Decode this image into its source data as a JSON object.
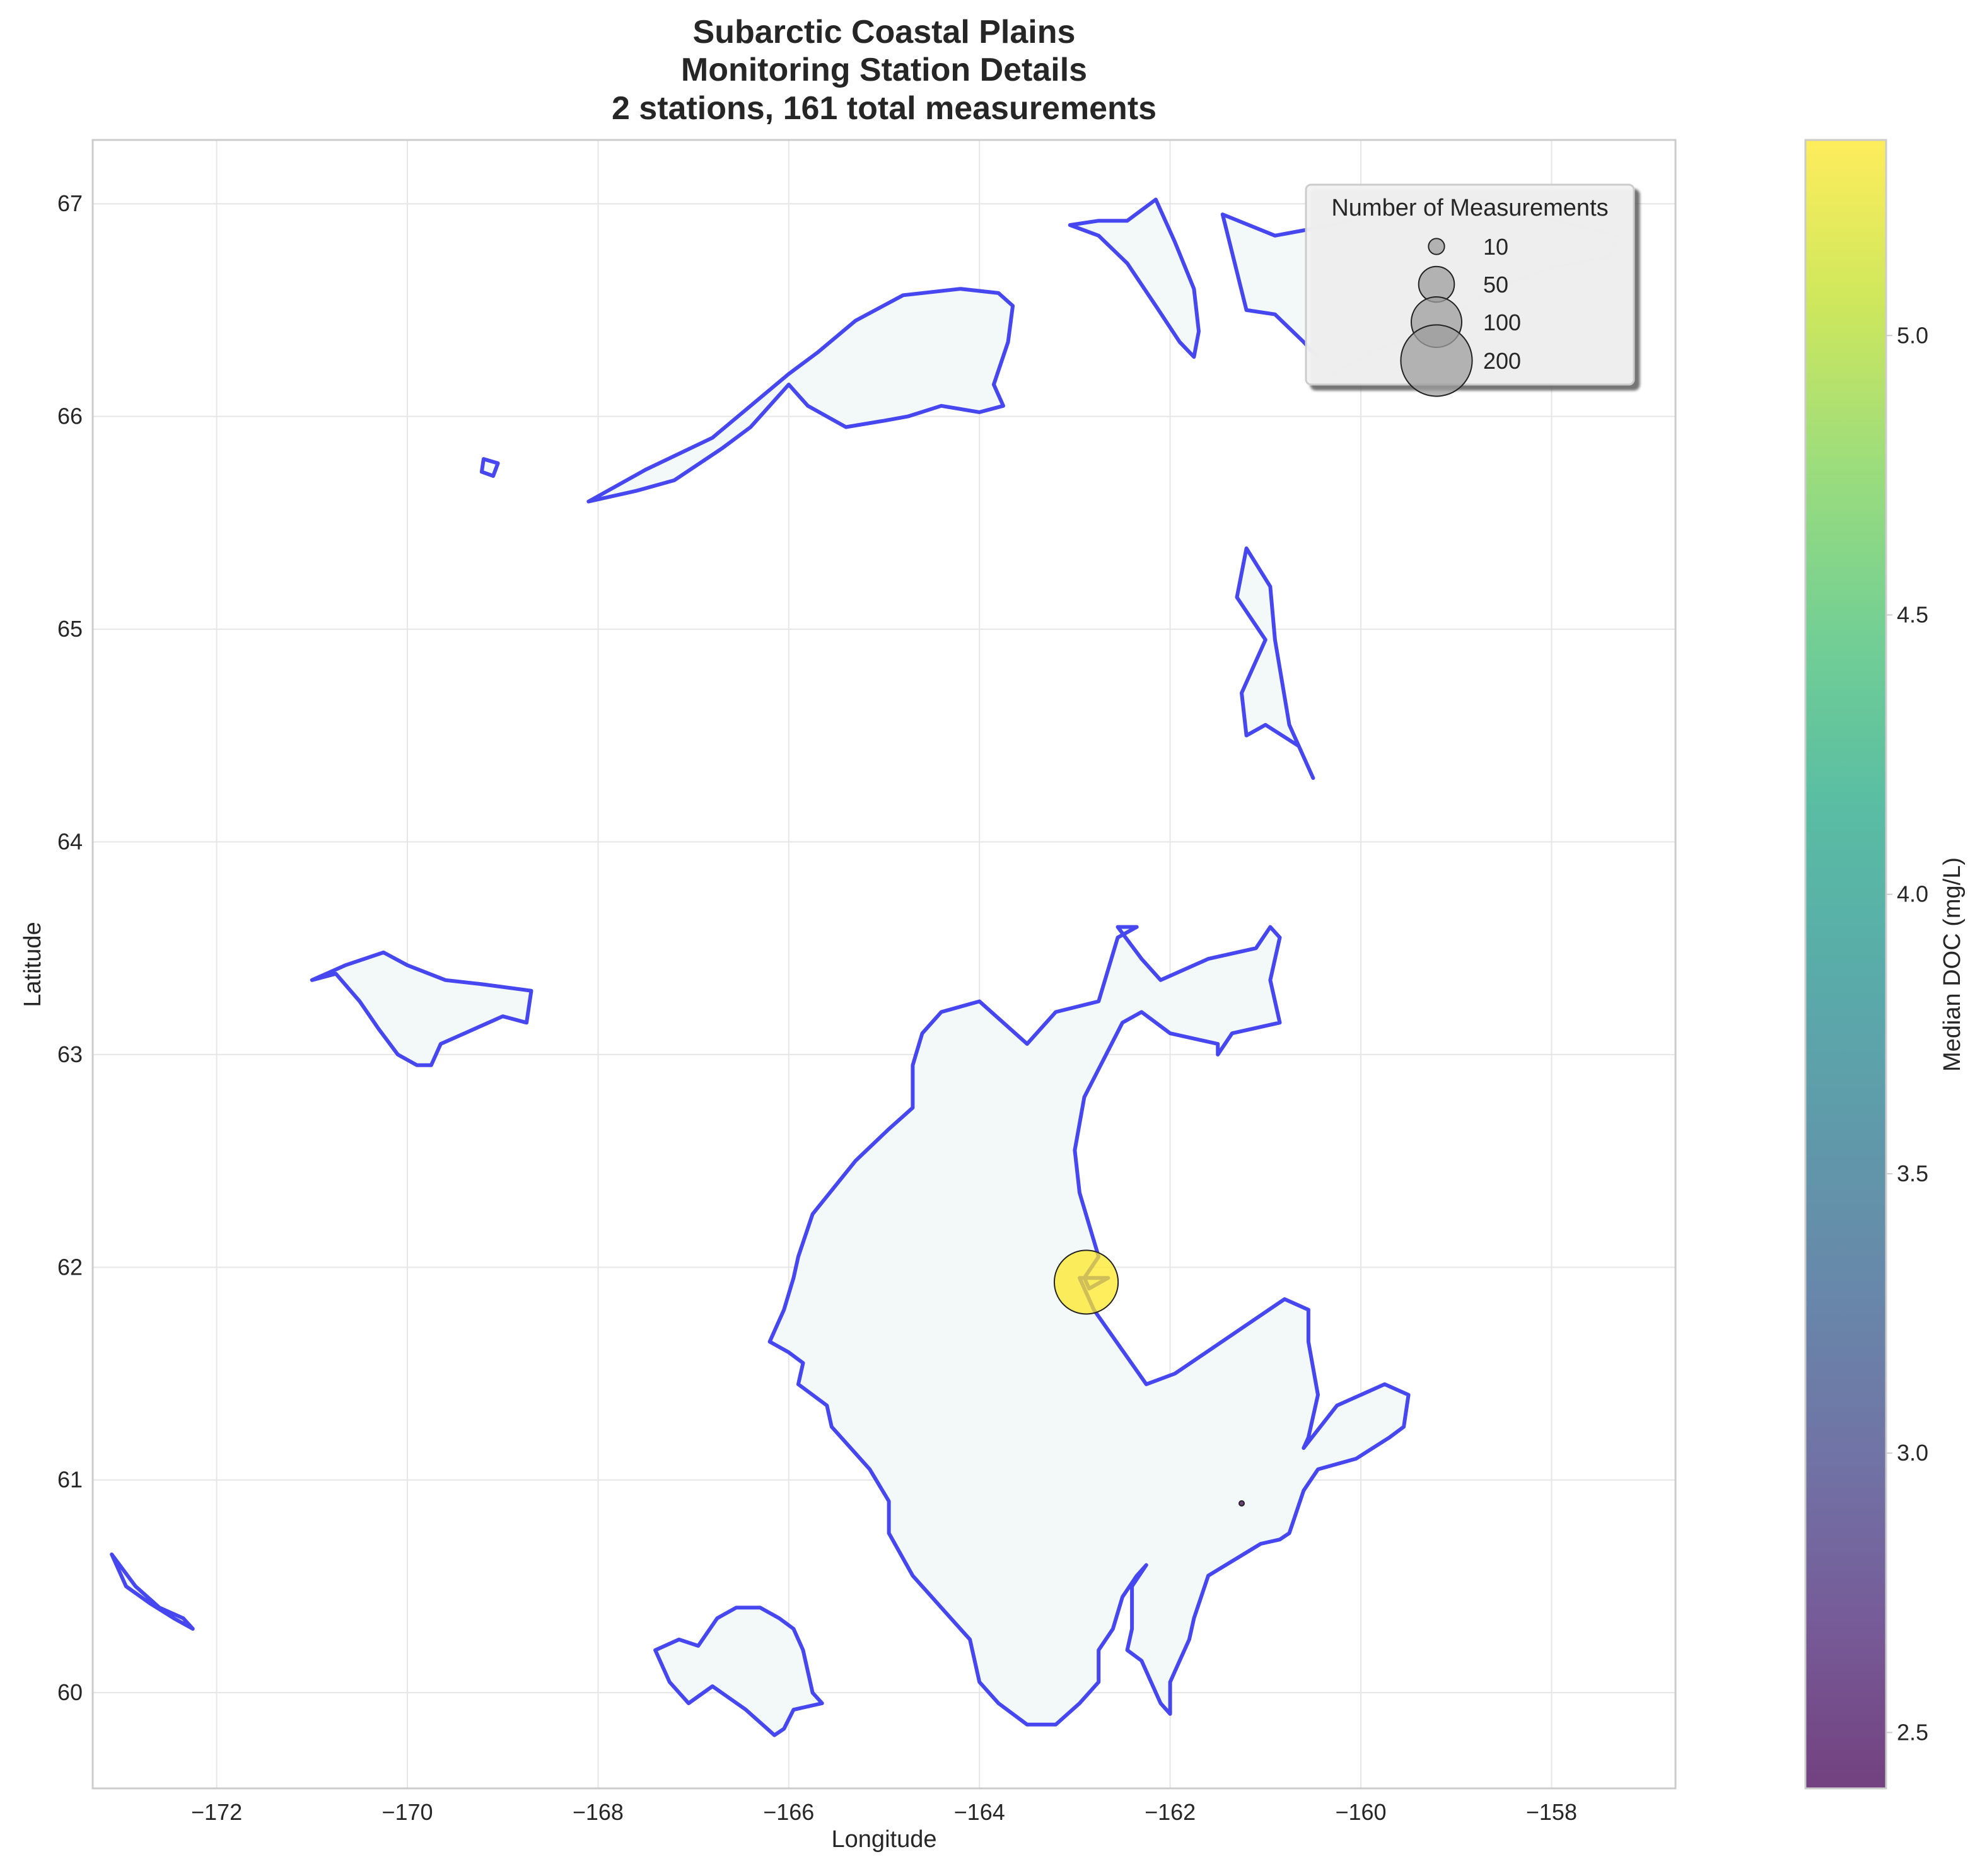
{
  "title": {
    "line1": "Subarctic Coastal Plains",
    "line2": "Monitoring Station Details",
    "line3": "2 stations, 161 total measurements"
  },
  "axes": {
    "xlabel": "Longitude",
    "ylabel": "Latitude",
    "xlim": [
      -173.3,
      -156.7
    ],
    "ylim": [
      59.55,
      67.3
    ],
    "xticks": [
      -172,
      -170,
      -168,
      -166,
      -164,
      -162,
      -160,
      -158
    ],
    "xtick_labels": [
      "−172",
      "−170",
      "−168",
      "−166",
      "−164",
      "−162",
      "−160",
      "−158"
    ],
    "yticks": [
      60,
      61,
      62,
      63,
      64,
      65,
      66,
      67
    ],
    "ytick_labels": [
      "60",
      "61",
      "62",
      "63",
      "64",
      "65",
      "66",
      "67"
    ],
    "grid": true
  },
  "colors": {
    "coastline": "#3333ee",
    "land_fill": "#f3f9f9",
    "grid": "#e6e6e6",
    "station_high_doc": "#fde725",
    "legend_marker": "#9e9e9e"
  },
  "colorbar": {
    "label": "Median DOC (mg/L)",
    "colormap": "viridis",
    "range": [
      2.4,
      5.35
    ],
    "ticks": [
      2.5,
      3.0,
      3.5,
      4.0,
      4.5,
      5.0
    ],
    "tick_labels": [
      "2.5",
      "3.0",
      "3.5",
      "4.0",
      "4.5",
      "5.0"
    ]
  },
  "legend": {
    "title": "Number of Measurements",
    "position": "top-right",
    "items": [
      {
        "label": "10",
        "count": 10
      },
      {
        "label": "50",
        "count": 50
      },
      {
        "label": "100",
        "count": 100
      },
      {
        "label": "200",
        "count": 200
      }
    ]
  },
  "chart_data": {
    "type": "scatter",
    "map": "coastline",
    "points": [
      {
        "lon": -162.88,
        "lat": 61.93,
        "measurements": 160,
        "median_doc": 5.35
      },
      {
        "lon": -161.25,
        "lat": 60.89,
        "measurements": 1,
        "median_doc": 2.4
      }
    ]
  },
  "coastlines": [
    {
      "name": "yukon-kuskokwim-delta",
      "coords": [
        [
          -164.0,
          63.25
        ],
        [
          -163.5,
          63.05
        ],
        [
          -163.2,
          63.2
        ],
        [
          -162.75,
          63.25
        ],
        [
          -162.55,
          63.55
        ],
        [
          -162.35,
          63.6
        ],
        [
          -162.55,
          63.6
        ],
        [
          -162.3,
          63.45
        ],
        [
          -162.1,
          63.35
        ],
        [
          -161.6,
          63.45
        ],
        [
          -161.1,
          63.5
        ],
        [
          -160.95,
          63.6
        ],
        [
          -160.85,
          63.55
        ],
        [
          -160.95,
          63.35
        ],
        [
          -160.85,
          63.15
        ],
        [
          -161.35,
          63.1
        ],
        [
          -161.5,
          63.0
        ],
        [
          -161.5,
          63.05
        ],
        [
          -162.0,
          63.1
        ],
        [
          -162.3,
          63.2
        ],
        [
          -162.5,
          63.15
        ],
        [
          -162.9,
          62.8
        ],
        [
          -163.0,
          62.55
        ],
        [
          -162.95,
          62.35
        ],
        [
          -162.75,
          62.05
        ],
        [
          -162.9,
          61.95
        ],
        [
          -162.85,
          61.9
        ],
        [
          -162.65,
          61.95
        ],
        [
          -162.95,
          61.95
        ],
        [
          -162.8,
          61.8
        ],
        [
          -162.25,
          61.45
        ],
        [
          -161.95,
          61.5
        ],
        [
          -160.8,
          61.85
        ],
        [
          -160.55,
          61.8
        ],
        [
          -160.55,
          61.65
        ],
        [
          -160.45,
          61.4
        ],
        [
          -160.55,
          61.2
        ],
        [
          -160.6,
          61.15
        ],
        [
          -160.25,
          61.35
        ],
        [
          -159.75,
          61.45
        ],
        [
          -159.5,
          61.4
        ],
        [
          -159.55,
          61.25
        ],
        [
          -159.7,
          61.2
        ],
        [
          -160.05,
          61.1
        ],
        [
          -160.45,
          61.05
        ],
        [
          -160.6,
          60.95
        ],
        [
          -160.75,
          60.75
        ],
        [
          -160.85,
          60.72
        ],
        [
          -161.05,
          60.7
        ],
        [
          -161.6,
          60.55
        ],
        [
          -161.75,
          60.35
        ],
        [
          -161.8,
          60.25
        ],
        [
          -161.9,
          60.15
        ],
        [
          -162.0,
          60.05
        ],
        [
          -162.0,
          59.9
        ],
        [
          -162.1,
          59.95
        ],
        [
          -162.2,
          60.05
        ],
        [
          -162.3,
          60.15
        ],
        [
          -162.45,
          60.2
        ],
        [
          -162.4,
          60.3
        ],
        [
          -162.4,
          60.5
        ],
        [
          -162.25,
          60.6
        ],
        [
          -162.35,
          60.55
        ],
        [
          -162.5,
          60.45
        ],
        [
          -162.6,
          60.3
        ],
        [
          -162.75,
          60.2
        ],
        [
          -162.75,
          60.05
        ],
        [
          -162.95,
          59.95
        ],
        [
          -163.2,
          59.85
        ],
        [
          -163.5,
          59.85
        ],
        [
          -163.8,
          59.95
        ],
        [
          -164.0,
          60.05
        ],
        [
          -164.1,
          60.25
        ],
        [
          -164.4,
          60.4
        ],
        [
          -164.7,
          60.55
        ],
        [
          -164.95,
          60.75
        ],
        [
          -164.95,
          60.9
        ],
        [
          -165.15,
          61.05
        ],
        [
          -165.35,
          61.15
        ],
        [
          -165.55,
          61.25
        ],
        [
          -165.6,
          61.35
        ],
        [
          -165.9,
          61.45
        ],
        [
          -165.85,
          61.55
        ],
        [
          -166.0,
          61.6
        ],
        [
          -166.2,
          61.65
        ],
        [
          -166.05,
          61.8
        ],
        [
          -165.95,
          61.95
        ],
        [
          -165.9,
          62.05
        ],
        [
          -165.75,
          62.25
        ],
        [
          -165.3,
          62.5
        ],
        [
          -164.95,
          62.65
        ],
        [
          -164.7,
          62.75
        ],
        [
          -164.7,
          62.95
        ],
        [
          -164.6,
          63.1
        ],
        [
          -164.4,
          63.2
        ],
        [
          -164.0,
          63.25
        ]
      ]
    },
    {
      "name": "nunivak-island",
      "coords": [
        [
          -167.4,
          60.2
        ],
        [
          -167.15,
          60.25
        ],
        [
          -166.95,
          60.22
        ],
        [
          -166.75,
          60.35
        ],
        [
          -166.55,
          60.4
        ],
        [
          -166.3,
          60.4
        ],
        [
          -166.1,
          60.35
        ],
        [
          -165.95,
          60.3
        ],
        [
          -165.85,
          60.2
        ],
        [
          -165.75,
          60.0
        ],
        [
          -165.65,
          59.95
        ],
        [
          -165.95,
          59.92
        ],
        [
          -166.05,
          59.83
        ],
        [
          -166.15,
          59.8
        ],
        [
          -166.45,
          59.92
        ],
        [
          -166.8,
          60.03
        ],
        [
          -167.05,
          59.95
        ],
        [
          -167.25,
          60.05
        ],
        [
          -167.4,
          60.2
        ]
      ]
    },
    {
      "name": "st-lawrence-island",
      "coords": [
        [
          -171.0,
          63.35
        ],
        [
          -170.65,
          63.42
        ],
        [
          -170.25,
          63.48
        ],
        [
          -170.0,
          63.42
        ],
        [
          -169.6,
          63.35
        ],
        [
          -169.2,
          63.33
        ],
        [
          -168.7,
          63.3
        ],
        [
          -168.75,
          63.15
        ],
        [
          -169.0,
          63.18
        ],
        [
          -169.4,
          63.1
        ],
        [
          -169.65,
          63.05
        ],
        [
          -169.75,
          62.95
        ],
        [
          -169.9,
          62.95
        ],
        [
          -170.1,
          63.0
        ],
        [
          -170.3,
          63.12
        ],
        [
          -170.5,
          63.25
        ],
        [
          -170.75,
          63.38
        ],
        [
          -171.0,
          63.35
        ]
      ]
    },
    {
      "name": "seward-peninsula",
      "coords": [
        [
          -168.1,
          65.6
        ],
        [
          -167.5,
          65.75
        ],
        [
          -166.8,
          65.9
        ],
        [
          -166.4,
          66.05
        ],
        [
          -166.0,
          66.2
        ],
        [
          -165.7,
          66.3
        ],
        [
          -165.3,
          66.45
        ],
        [
          -164.8,
          66.57
        ],
        [
          -164.2,
          66.6
        ],
        [
          -163.8,
          66.58
        ],
        [
          -163.65,
          66.52
        ],
        [
          -163.7,
          66.35
        ],
        [
          -163.85,
          66.15
        ],
        [
          -163.75,
          66.05
        ],
        [
          -164.0,
          66.02
        ],
        [
          -164.4,
          66.05
        ],
        [
          -164.75,
          66.0
        ],
        [
          -165.0,
          65.98
        ],
        [
          -165.4,
          65.95
        ],
        [
          -165.8,
          66.05
        ],
        [
          -166.0,
          66.15
        ],
        [
          -166.4,
          65.95
        ],
        [
          -166.7,
          65.85
        ],
        [
          -167.2,
          65.7
        ],
        [
          -167.6,
          65.65
        ],
        [
          -168.1,
          65.6
        ]
      ]
    },
    {
      "name": "kotzebue-shore",
      "coords": [
        [
          -163.05,
          66.9
        ],
        [
          -162.75,
          66.85
        ],
        [
          -162.45,
          66.72
        ],
        [
          -162.15,
          66.52
        ],
        [
          -161.9,
          66.35
        ],
        [
          -161.75,
          66.28
        ],
        [
          -161.7,
          66.4
        ],
        [
          -161.75,
          66.6
        ],
        [
          -161.95,
          66.82
        ],
        [
          -162.15,
          67.02
        ],
        [
          -162.45,
          66.92
        ],
        [
          -162.75,
          66.92
        ],
        [
          -163.05,
          66.9
        ]
      ]
    },
    {
      "name": "baldwin-peninsula",
      "coords": [
        [
          -161.2,
          65.38
        ],
        [
          -160.95,
          65.2
        ],
        [
          -160.9,
          64.95
        ],
        [
          -160.75,
          64.55
        ],
        [
          -160.5,
          64.3
        ],
        [
          -160.65,
          64.45
        ],
        [
          -161.0,
          64.55
        ],
        [
          -161.2,
          64.5
        ],
        [
          -161.25,
          64.7
        ],
        [
          -161.0,
          64.95
        ],
        [
          -161.15,
          65.05
        ],
        [
          -161.3,
          65.15
        ],
        [
          -161.2,
          65.38
        ]
      ]
    },
    {
      "name": "northeast-coast",
      "coords": [
        [
          -161.45,
          66.95
        ],
        [
          -160.9,
          66.85
        ],
        [
          -160.3,
          66.9
        ],
        [
          -159.5,
          67.0
        ],
        [
          -158.8,
          67.02
        ],
        [
          -158.2,
          66.95
        ],
        [
          -157.3,
          66.85
        ],
        [
          -157.4,
          66.75
        ],
        [
          -158.0,
          66.7
        ],
        [
          -158.6,
          66.6
        ],
        [
          -159.3,
          66.4
        ],
        [
          -159.9,
          66.3
        ],
        [
          -160.3,
          66.2
        ],
        [
          -160.6,
          66.35
        ],
        [
          -160.9,
          66.48
        ],
        [
          -161.2,
          66.5
        ],
        [
          -161.45,
          66.95
        ]
      ]
    },
    {
      "name": "aleutian-fragment",
      "coords": [
        [
          -173.1,
          60.65
        ],
        [
          -172.85,
          60.5
        ],
        [
          -172.6,
          60.4
        ],
        [
          -172.35,
          60.35
        ],
        [
          -172.25,
          60.3
        ],
        [
          -172.45,
          60.35
        ],
        [
          -172.7,
          60.42
        ],
        [
          -172.95,
          60.5
        ],
        [
          -173.1,
          60.65
        ]
      ]
    },
    {
      "name": "small-island-west",
      "coords": [
        [
          -169.2,
          65.8
        ],
        [
          -169.05,
          65.78
        ],
        [
          -169.1,
          65.72
        ],
        [
          -169.22,
          65.74
        ],
        [
          -169.2,
          65.8
        ]
      ]
    }
  ]
}
